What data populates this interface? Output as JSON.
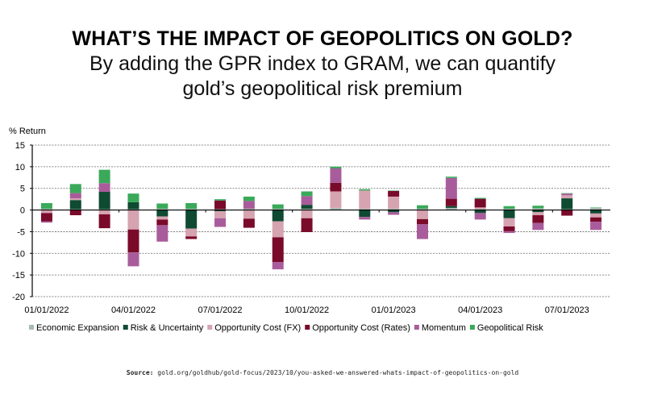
{
  "header": {
    "title": "WHAT’S THE IMPACT OF GEOPOLITICS ON GOLD?",
    "subtitle_line1": "By adding the GPR index to GRAM, we can quantify",
    "subtitle_line2": "gold’s geopolitical risk premium"
  },
  "source": {
    "label": "Source:",
    "text": "gold.org/goldhub/gold-focus/2023/10/you-asked-we-answered-whats-impact-of-geopolitics-on-gold"
  },
  "chart_data": {
    "type": "bar",
    "stacked": true,
    "ylabel": "% Return",
    "ylim": [
      -20,
      15
    ],
    "yticks": [
      15,
      10,
      5,
      0,
      -5,
      -10,
      -15,
      -20
    ],
    "grid": true,
    "legend_position": "bottom",
    "categories": [
      "01/2022",
      "02/2022",
      "03/2022",
      "04/2022",
      "05/2022",
      "06/2022",
      "07/2022",
      "08/2022",
      "09/2022",
      "10/2022",
      "11/2022",
      "12/2022",
      "01/2023",
      "02/2023",
      "03/2023",
      "04/2023",
      "05/2023",
      "06/2023",
      "07/2023",
      "08/2023"
    ],
    "xtick_labels": [
      "01/01/2022",
      "04/01/2022",
      "07/01/2022",
      "10/01/2022",
      "01/01/2023",
      "04/01/2023",
      "07/01/2023"
    ],
    "series": [
      {
        "name": "Economic Expansion",
        "color": "#a9bab1",
        "values": [
          0.3,
          0.2,
          0.2,
          0.2,
          0.3,
          0.3,
          0.2,
          0.3,
          0.3,
          0.3,
          0.5,
          0.3,
          0.3,
          0.3,
          0.5,
          0.3,
          0.3,
          0.4,
          0.2,
          0.5
        ]
      },
      {
        "name": "Risk & Uncertainty",
        "color": "#0f4a32",
        "values": [
          0,
          2.1,
          4.0,
          1.6,
          -1.5,
          -4.3,
          -0.3,
          0,
          -2.6,
          0.9,
          0,
          -1.6,
          -0.5,
          0,
          0.4,
          -0.7,
          -1.9,
          -0.5,
          2.5,
          -0.8
        ]
      },
      {
        "name": "Opportunity Cost (FX)",
        "color": "#d6a3b1",
        "values": [
          -0.7,
          0.4,
          -1.0,
          -4.5,
          -0.7,
          -1.8,
          -1.6,
          -2.0,
          -3.7,
          -1.9,
          3.8,
          4.2,
          2.8,
          -2.1,
          0,
          0.3,
          -1.9,
          -0.7,
          0.7,
          -0.9
        ]
      },
      {
        "name": "Opportunity Cost (Rates)",
        "color": "#7a0a2a",
        "values": [
          -1.9,
          -1.2,
          -3.2,
          -5.3,
          -1.3,
          -0.6,
          2.0,
          -2.1,
          -5.7,
          -3.2,
          2.0,
          0,
          1.3,
          -1.2,
          1.7,
          2.0,
          -1.1,
          -1.8,
          -1.3,
          -1.0
        ]
      },
      {
        "name": "Momentum",
        "color": "#a95c9b",
        "values": [
          -0.3,
          1.2,
          2.0,
          -3.2,
          -3.8,
          0,
          -2.0,
          1.8,
          -1.7,
          2.0,
          3.3,
          -0.6,
          -0.6,
          -3.4,
          4.8,
          -1.5,
          -0.4,
          -1.6,
          0.4,
          -1.9
        ]
      },
      {
        "name": "Geopolitical Risk",
        "color": "#3aa95a",
        "values": [
          1.3,
          2.1,
          3.1,
          2.0,
          1.2,
          1.3,
          0.3,
          1.0,
          1.0,
          1.1,
          0.4,
          0.3,
          0.1,
          0.8,
          0.3,
          0.2,
          0.6,
          0.6,
          0.1,
          0.1
        ]
      }
    ]
  }
}
